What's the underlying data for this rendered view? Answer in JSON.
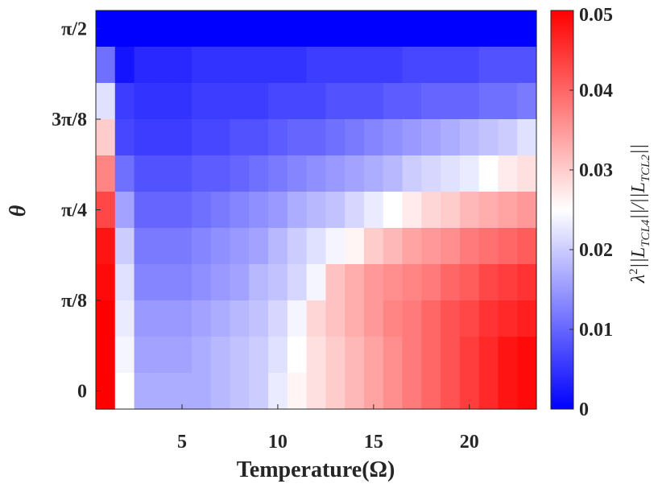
{
  "chart_data": {
    "type": "heatmap",
    "xlabel": "Temperature(Ω)",
    "ylabel": "θ",
    "colorbar_label": "λ²||L_TCL4||/||L_TCL2||",
    "colorbar_label_parts": {
      "lambda": "λ",
      "sq": "2",
      "num": "||L",
      "num_sub": "TCL4",
      "mid": "||/||L",
      "den_sub": "TCL2",
      "end": "||"
    },
    "colormap": {
      "low": "#0000ff",
      "mid": "#ffffff",
      "high": "#ff0000"
    },
    "clim": [
      0,
      0.05
    ],
    "xlim": [
      0.5,
      23.5
    ],
    "x_ticks": [
      {
        "value": 5,
        "label": "5"
      },
      {
        "value": 10,
        "label": "10"
      },
      {
        "value": 15,
        "label": "15"
      },
      {
        "value": 20,
        "label": "20"
      }
    ],
    "y_ticks": [
      {
        "row": 0,
        "label": "0"
      },
      {
        "row": 2.5,
        "label": "π/8"
      },
      {
        "row": 5,
        "label": "π/4"
      },
      {
        "row": 7.5,
        "label": "3π/8"
      },
      {
        "row": 10,
        "label": "π/2"
      }
    ],
    "colorbar_ticks": [
      {
        "value": 0,
        "label": "0"
      },
      {
        "value": 0.01,
        "label": "0.01"
      },
      {
        "value": 0.02,
        "label": "0.02"
      },
      {
        "value": 0.03,
        "label": "0.03"
      },
      {
        "value": 0.04,
        "label": "0.04"
      },
      {
        "value": 0.05,
        "label": "0.05"
      }
    ],
    "x": [
      1,
      2,
      3,
      4,
      5,
      6,
      7,
      8,
      9,
      10,
      11,
      12,
      13,
      14,
      15,
      16,
      17,
      18,
      19,
      20,
      21,
      22,
      23
    ],
    "rows_top_to_bottom": [
      [
        0.0,
        0.0,
        0.0,
        0.0,
        0.0,
        0.0,
        0.0,
        0.0,
        0.0,
        0.0,
        0.0,
        0.0,
        0.0,
        0.0,
        0.0,
        0.0,
        0.0,
        0.0,
        0.0,
        0.0,
        0.0,
        0.0,
        0.0
      ],
      [
        0.011,
        0.002,
        0.004,
        0.004,
        0.004,
        0.005,
        0.005,
        0.005,
        0.005,
        0.005,
        0.005,
        0.006,
        0.006,
        0.006,
        0.006,
        0.006,
        0.007,
        0.007,
        0.007,
        0.007,
        0.008,
        0.008,
        0.008
      ],
      [
        0.022,
        0.006,
        0.005,
        0.005,
        0.005,
        0.006,
        0.006,
        0.006,
        0.006,
        0.007,
        0.007,
        0.007,
        0.008,
        0.008,
        0.008,
        0.009,
        0.009,
        0.01,
        0.01,
        0.01,
        0.011,
        0.011,
        0.012
      ],
      [
        0.03,
        0.007,
        0.006,
        0.006,
        0.006,
        0.007,
        0.007,
        0.008,
        0.008,
        0.009,
        0.01,
        0.01,
        0.011,
        0.012,
        0.013,
        0.014,
        0.015,
        0.016,
        0.017,
        0.018,
        0.019,
        0.02,
        0.022
      ],
      [
        0.037,
        0.011,
        0.008,
        0.008,
        0.008,
        0.009,
        0.009,
        0.01,
        0.011,
        0.012,
        0.013,
        0.014,
        0.015,
        0.016,
        0.017,
        0.018,
        0.02,
        0.021,
        0.022,
        0.023,
        0.025,
        0.027,
        0.028
      ],
      [
        0.043,
        0.016,
        0.01,
        0.01,
        0.01,
        0.011,
        0.012,
        0.013,
        0.014,
        0.015,
        0.017,
        0.018,
        0.019,
        0.021,
        0.023,
        0.025,
        0.027,
        0.029,
        0.03,
        0.032,
        0.033,
        0.034,
        0.035
      ],
      [
        0.048,
        0.02,
        0.012,
        0.012,
        0.012,
        0.013,
        0.014,
        0.015,
        0.016,
        0.018,
        0.02,
        0.022,
        0.024,
        0.026,
        0.03,
        0.032,
        0.034,
        0.035,
        0.036,
        0.038,
        0.039,
        0.04,
        0.041
      ],
      [
        0.049,
        0.022,
        0.013,
        0.013,
        0.013,
        0.014,
        0.015,
        0.016,
        0.018,
        0.019,
        0.021,
        0.024,
        0.031,
        0.033,
        0.035,
        0.036,
        0.037,
        0.038,
        0.04,
        0.041,
        0.043,
        0.044,
        0.045
      ],
      [
        0.05,
        0.023,
        0.015,
        0.015,
        0.015,
        0.016,
        0.017,
        0.018,
        0.019,
        0.021,
        0.024,
        0.029,
        0.031,
        0.033,
        0.035,
        0.037,
        0.038,
        0.04,
        0.042,
        0.043,
        0.045,
        0.046,
        0.047
      ],
      [
        0.05,
        0.024,
        0.016,
        0.016,
        0.016,
        0.017,
        0.018,
        0.019,
        0.02,
        0.022,
        0.025,
        0.028,
        0.03,
        0.032,
        0.034,
        0.036,
        0.038,
        0.04,
        0.042,
        0.044,
        0.046,
        0.048,
        0.049
      ],
      [
        0.05,
        0.025,
        0.017,
        0.017,
        0.017,
        0.017,
        0.018,
        0.019,
        0.02,
        0.023,
        0.026,
        0.028,
        0.03,
        0.032,
        0.034,
        0.036,
        0.038,
        0.04,
        0.042,
        0.044,
        0.046,
        0.048,
        0.049
      ]
    ]
  }
}
